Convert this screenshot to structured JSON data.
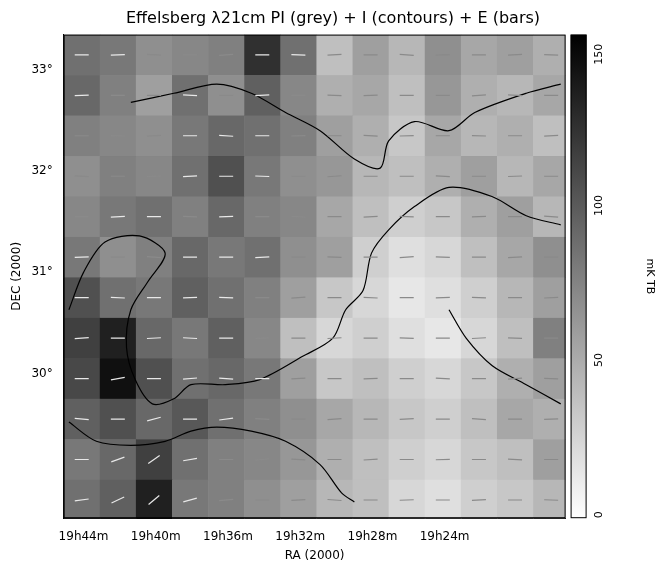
{
  "chart_data": {
    "type": "heatmap",
    "title": "Effelsberg λ21cm PI (grey) + I (contours) + E (bars)",
    "x_label": "RA (2000)",
    "y_label": "DEC (2000)",
    "xlim": [
      45.1,
      17.3
    ],
    "xticks": [
      {
        "value": 44,
        "label": "19h44m"
      },
      {
        "value": 40,
        "label": "19h40m"
      },
      {
        "value": 36,
        "label": "19h36m"
      },
      {
        "value": 32,
        "label": "19h32m"
      },
      {
        "value": 28,
        "label": "19h28m"
      },
      {
        "value": 24,
        "label": "19h24m"
      }
    ],
    "ylim": [
      28.57,
      33.35
    ],
    "yticks": [
      {
        "value": 30,
        "label": "30°"
      },
      {
        "value": 31,
        "label": "31°"
      },
      {
        "value": 32,
        "label": "32°"
      },
      {
        "value": 33,
        "label": "33°"
      }
    ],
    "grid": false,
    "cells": {
      "x": [
        44.1,
        42.1,
        40.1,
        38.1,
        36.1,
        34.1,
        32.1,
        30.1,
        28.1,
        26.1,
        24.1,
        22.1,
        20.1,
        18.1
      ],
      "y": [
        33.15,
        32.75,
        32.35,
        31.95,
        31.55,
        31.15,
        30.75,
        30.35,
        29.95,
        29.55,
        29.15,
        28.75
      ],
      "values": [
        [
          90,
          85,
          70,
          75,
          80,
          130,
          90,
          40,
          60,
          45,
          70,
          55,
          60,
          50
        ],
        [
          95,
          80,
          60,
          90,
          70,
          100,
          75,
          50,
          55,
          40,
          65,
          50,
          45,
          55
        ],
        [
          80,
          75,
          70,
          85,
          95,
          90,
          80,
          60,
          50,
          35,
          55,
          45,
          50,
          40
        ],
        [
          70,
          80,
          75,
          90,
          110,
          85,
          70,
          65,
          45,
          40,
          50,
          60,
          45,
          55
        ],
        [
          75,
          85,
          90,
          80,
          95,
          80,
          75,
          55,
          40,
          30,
          35,
          50,
          60,
          45
        ],
        [
          85,
          70,
          80,
          95,
          85,
          90,
          70,
          60,
          30,
          20,
          25,
          40,
          55,
          70
        ],
        [
          110,
          90,
          85,
          100,
          90,
          80,
          60,
          35,
          25,
          15,
          20,
          30,
          45,
          60
        ],
        [
          120,
          140,
          95,
          85,
          100,
          75,
          40,
          25,
          30,
          20,
          15,
          25,
          40,
          80
        ],
        [
          115,
          150,
          110,
          90,
          95,
          85,
          60,
          35,
          40,
          30,
          25,
          35,
          50,
          60
        ],
        [
          100,
          110,
          95,
          105,
          90,
          80,
          70,
          55,
          45,
          35,
          30,
          40,
          55,
          50
        ],
        [
          85,
          95,
          120,
          90,
          80,
          75,
          65,
          50,
          40,
          30,
          25,
          35,
          40,
          60
        ],
        [
          90,
          100,
          140,
          85,
          80,
          70,
          60,
          45,
          40,
          25,
          20,
          30,
          35,
          45
        ]
      ]
    },
    "e_vectors": {
      "angles": [
        [
          0,
          2,
          -3,
          0,
          4,
          0,
          -2,
          3,
          0,
          -4,
          2,
          0,
          3,
          -2
        ],
        [
          2,
          0,
          0,
          -3,
          0,
          3,
          0,
          -2,
          2,
          0,
          0,
          4,
          -3,
          0
        ],
        [
          0,
          -2,
          3,
          0,
          -4,
          0,
          2,
          0,
          -3,
          2,
          0,
          -2,
          0,
          3
        ],
        [
          -3,
          0,
          2,
          3,
          0,
          -2,
          0,
          4,
          0,
          0,
          -3,
          0,
          2,
          0
        ],
        [
          0,
          3,
          0,
          -2,
          2,
          0,
          -3,
          0,
          3,
          -2,
          0,
          2,
          0,
          -4
        ],
        [
          2,
          0,
          -4,
          0,
          0,
          3,
          0,
          -2,
          0,
          4,
          -2,
          0,
          3,
          0
        ],
        [
          0,
          -3,
          0,
          2,
          -2,
          0,
          4,
          0,
          -3,
          0,
          2,
          -2,
          0,
          3
        ],
        [
          4,
          0,
          3,
          -3,
          0,
          2,
          0,
          3,
          0,
          -2,
          0,
          3,
          -2,
          0
        ],
        [
          0,
          10,
          0,
          5,
          -4,
          0,
          3,
          0,
          2,
          0,
          -3,
          0,
          4,
          -2
        ],
        [
          -5,
          0,
          15,
          0,
          8,
          -3,
          0,
          4,
          0,
          3,
          0,
          -4,
          0,
          2
        ],
        [
          0,
          20,
          35,
          10,
          0,
          5,
          -3,
          0,
          4,
          0,
          2,
          0,
          -3,
          0
        ],
        [
          8,
          25,
          40,
          15,
          5,
          0,
          3,
          -4,
          0,
          2,
          0,
          3,
          0,
          -2
        ]
      ]
    },
    "contours": [
      {
        "x": [
          44.81,
          44.0,
          42.81,
          40.9,
          39.48,
          40.43,
          41.38,
          41.62,
          41.14,
          40.19,
          39.0,
          38.05,
          36.14,
          34.24,
          31.86,
          30.19,
          29.48,
          28.52,
          28.05,
          27.1,
          25.67,
          23.76,
          21.38,
          19.48,
          17.57
        ],
        "y": [
          30.63,
          31.0,
          31.3,
          31.36,
          31.19,
          30.91,
          30.63,
          30.26,
          29.94,
          29.7,
          29.75,
          29.89,
          29.89,
          29.94,
          30.17,
          30.35,
          30.63,
          30.82,
          31.19,
          31.42,
          31.65,
          31.84,
          31.75,
          31.56,
          31.47
        ]
      },
      {
        "x": [
          44.81,
          43.29,
          41.38,
          39.48,
          38.05,
          36.62,
          34.71,
          32.81,
          30.9,
          29.71,
          29.0
        ],
        "y": [
          29.52,
          29.33,
          29.29,
          29.33,
          29.43,
          29.47,
          29.43,
          29.33,
          29.1,
          28.82,
          28.73
        ]
      },
      {
        "x": [
          41.38,
          39.0,
          36.62,
          34.71,
          32.81,
          30.9,
          29.0,
          27.57,
          27.1,
          25.67,
          23.76,
          22.33,
          19.48,
          17.57
        ],
        "y": [
          32.68,
          32.77,
          32.86,
          32.77,
          32.58,
          32.4,
          32.12,
          32.03,
          32.3,
          32.49,
          32.4,
          32.58,
          32.77,
          32.86
        ]
      },
      {
        "x": [
          23.76,
          22.81,
          21.38,
          19.48,
          17.57
        ],
        "y": [
          30.63,
          30.35,
          30.08,
          29.89,
          29.7
        ]
      }
    ],
    "colorbar": {
      "label": "mK TB",
      "range": [
        0,
        160
      ],
      "ticks": [
        0,
        50,
        100,
        150
      ]
    }
  }
}
